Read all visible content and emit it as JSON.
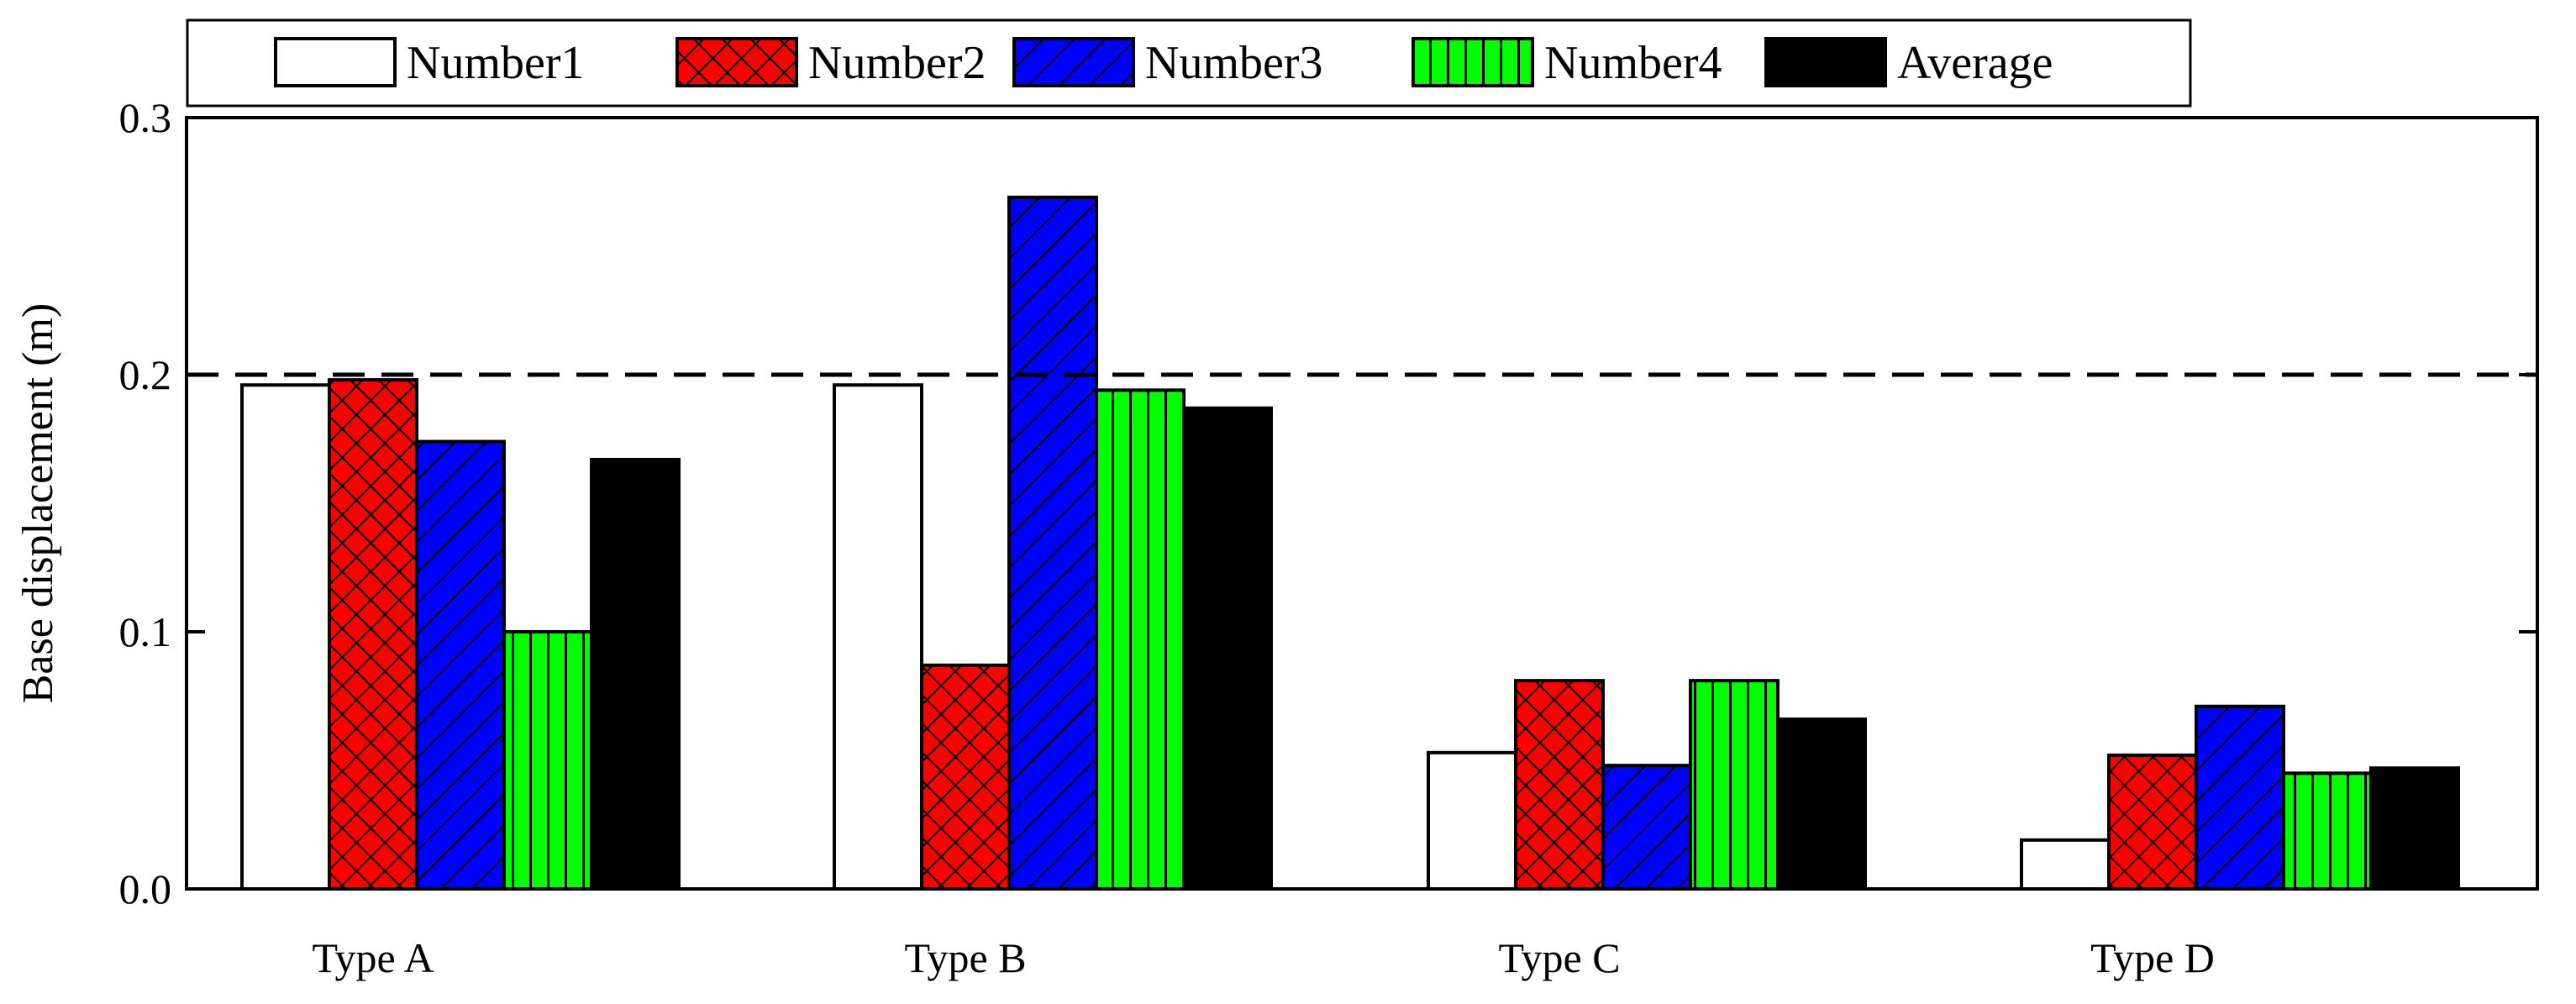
{
  "chart_data": {
    "type": "bar",
    "title": "",
    "xlabel": "",
    "ylabel": "Base displacement (m)",
    "ylim": [
      0,
      0.3
    ],
    "yticks": [
      "0.0",
      "0.1",
      "0.2",
      "0.3"
    ],
    "ytick_values": [
      0,
      0.1,
      0.2,
      0.3
    ],
    "categories": [
      "Type A",
      "Type B",
      "Type C",
      "Type D"
    ],
    "series": [
      {
        "name": "Number1",
        "values": [
          0.196,
          0.196,
          0.053,
          0.019
        ]
      },
      {
        "name": "Number2",
        "values": [
          0.198,
          0.087,
          0.081,
          0.052
        ]
      },
      {
        "name": "Number3",
        "values": [
          0.174,
          0.269,
          0.048,
          0.071
        ]
      },
      {
        "name": "Number4",
        "values": [
          0.1,
          0.194,
          0.081,
          0.045
        ]
      },
      {
        "name": "Average",
        "values": [
          0.167,
          0.187,
          0.066,
          0.047
        ]
      }
    ],
    "reference_line": {
      "value": 0.2,
      "style": "dashed"
    },
    "legend_position": "top",
    "grid": false
  },
  "colors": {
    "Number1": "#ffffff",
    "Number2": "#ff0000",
    "Number3": "#0000ff",
    "Number4": "#00ff00",
    "Average": "#000000"
  },
  "patterns": {
    "Number1": "none",
    "Number2": "crosshatch",
    "Number3": "diagonal",
    "Number4": "vertical",
    "Average": "none"
  }
}
